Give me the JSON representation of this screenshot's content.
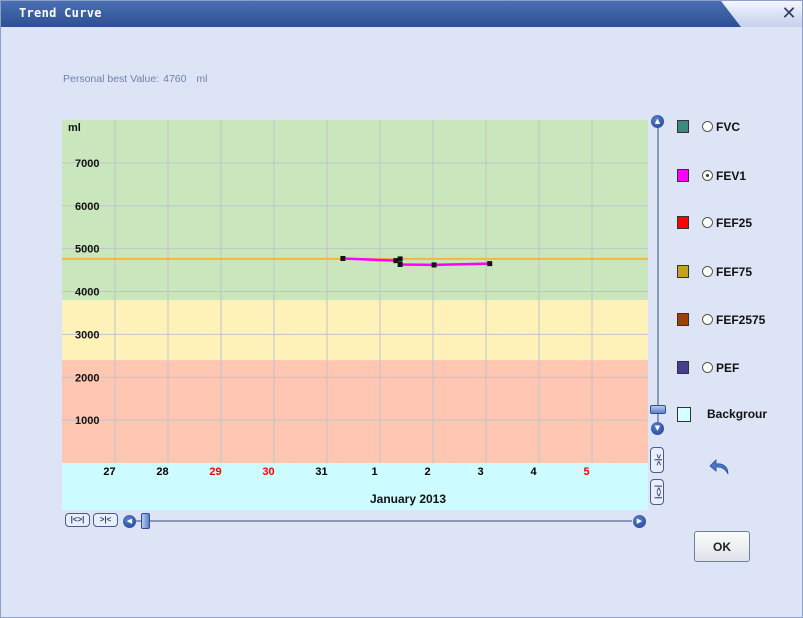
{
  "window": {
    "title": "Trend Curve",
    "close_glyph": "✕"
  },
  "personal_best": {
    "label": "Personal best Value:",
    "value": "4760",
    "unit": "ml"
  },
  "legend": [
    {
      "key": "fvc",
      "label": "FVC",
      "color": "#3a8a7e",
      "selected": false
    },
    {
      "key": "fev1",
      "label": "FEV1",
      "color": "#ff00ff",
      "selected": true
    },
    {
      "key": "fef25",
      "label": "FEF25",
      "color": "#ff0000",
      "selected": false
    },
    {
      "key": "fef75",
      "label": "FEF75",
      "color": "#c8a020",
      "selected": false
    },
    {
      "key": "fef2575",
      "label": "FEF2575",
      "color": "#a04000",
      "selected": false
    },
    {
      "key": "pef",
      "label": "PEF",
      "color": "#483d8b",
      "selected": false
    },
    {
      "key": "background",
      "label": "Backgrour",
      "color": "#d6ffff",
      "selected": null
    }
  ],
  "buttons": {
    "ok": "OK"
  },
  "icons": {
    "undo": "undo-icon",
    "scroll_up": "scroll-up-icon",
    "scroll_down": "scroll-down-icon",
    "scroll_left": "scroll-left-icon",
    "scroll_right": "scroll-right-icon"
  },
  "nav_icons": {
    "first": "|<>|",
    "prev": ">|<"
  },
  "chart_data": {
    "type": "line",
    "ylabel": "ml",
    "ylim": [
      0,
      8000
    ],
    "yticks": [
      1000,
      2000,
      3000,
      4000,
      5000,
      6000,
      7000
    ],
    "x_categories": [
      "27",
      "28",
      "29",
      "30",
      "31",
      "1",
      "2",
      "3",
      "4",
      "5"
    ],
    "x_category_colors": [
      "#000000",
      "#000000",
      "#ff0000",
      "#ff0000",
      "#000000",
      "#000000",
      "#000000",
      "#000000",
      "#000000",
      "#ff0000"
    ],
    "month_label": "January 2013",
    "zones": [
      {
        "from": 3800,
        "to": 8000,
        "color": "#c9e6bc"
      },
      {
        "from": 2400,
        "to": 3800,
        "color": "#fff2b8"
      },
      {
        "from": 0,
        "to": 2400,
        "color": "#ffc6b2"
      }
    ],
    "reference_line": {
      "value": 4760,
      "color": "#f0b840"
    },
    "series": [
      {
        "color": "#ff00ff",
        "points": [
          {
            "x": 5.3,
            "y": 4770
          },
          {
            "x": 6.3,
            "y": 4720
          },
          {
            "x": 6.38,
            "y": 4760
          },
          {
            "x": 6.38,
            "y": 4630
          },
          {
            "x": 7.02,
            "y": 4620
          },
          {
            "x": 8.07,
            "y": 4650
          }
        ]
      }
    ],
    "x_axis_bg": "#ccfcff",
    "grid": true
  }
}
